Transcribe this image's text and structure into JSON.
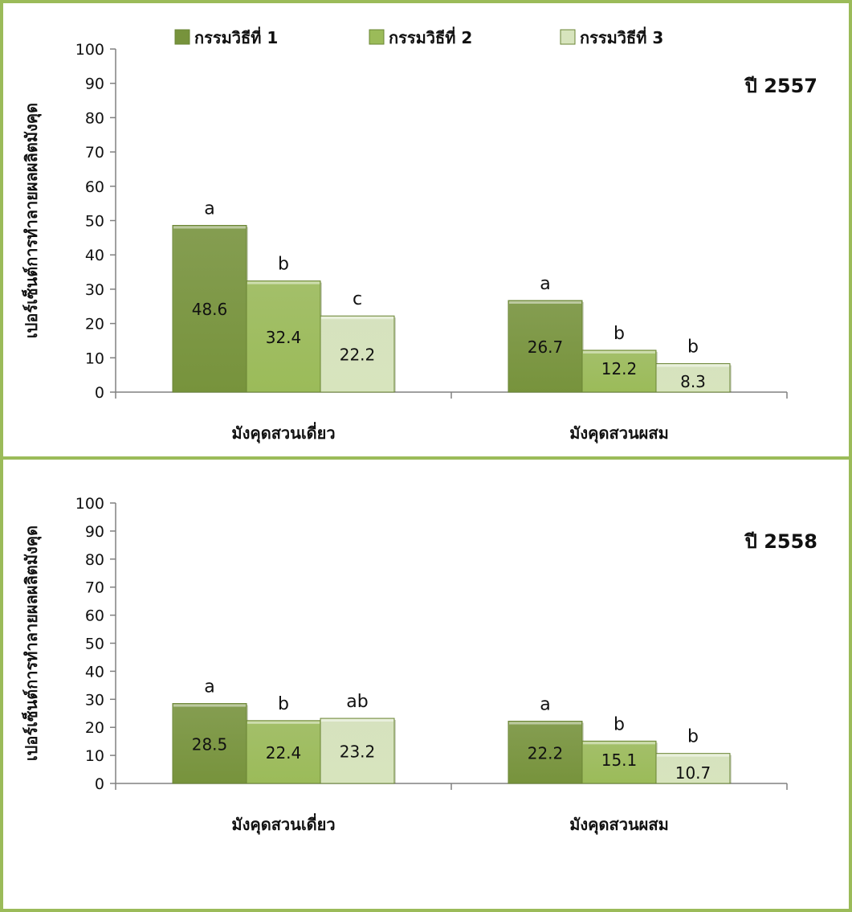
{
  "colors": {
    "series1": "#77933c",
    "series2": "#9bbb59",
    "series3": "#d7e4bd",
    "border": "#9bbb59",
    "axis": "#808080"
  },
  "legend": [
    "กรรมวิธีที่ 1",
    "กรรมวิธีที่ 2",
    "กรรมวิธีที่ 3"
  ],
  "chart_data": [
    {
      "type": "bar",
      "title": "ปี 2557",
      "ylabel": "เปอร์เซ็นต์การทำลายผลผลิตมังคุด",
      "xlabel": "",
      "ylim": [
        0,
        100
      ],
      "yticks": [
        0,
        10,
        20,
        30,
        40,
        50,
        60,
        70,
        80,
        90,
        100
      ],
      "categories": [
        "มังคุดสวนเดี่ยว",
        "มังคุดสวนผสม"
      ],
      "legend_position": "top",
      "series": [
        {
          "name": "กรรมวิธีที่ 1",
          "values": [
            48.6,
            26.7
          ],
          "labels": [
            "a",
            "a"
          ]
        },
        {
          "name": "กรรมวิธีที่ 2",
          "values": [
            32.4,
            12.2
          ],
          "labels": [
            "b",
            "b"
          ]
        },
        {
          "name": "กรรมวิธีที่ 3",
          "values": [
            22.2,
            8.3
          ],
          "labels": [
            "c",
            "b"
          ]
        }
      ]
    },
    {
      "type": "bar",
      "title": "ปี 2558",
      "ylabel": "เปอร์เซ็นต์การทำลายผลผลิตมังคุด",
      "xlabel": "",
      "ylim": [
        0,
        100
      ],
      "yticks": [
        0,
        10,
        20,
        30,
        40,
        50,
        60,
        70,
        80,
        90,
        100
      ],
      "categories": [
        "มังคุดสวนเดี่ยว",
        "มังคุดสวนผสม"
      ],
      "series": [
        {
          "name": "กรรมวิธีที่ 1",
          "values": [
            28.5,
            22.2
          ],
          "labels": [
            "a",
            "a"
          ]
        },
        {
          "name": "กรรมวิธีที่ 2",
          "values": [
            22.4,
            15.1
          ],
          "labels": [
            "b",
            "b"
          ]
        },
        {
          "name": "กรรมวิธีที่ 3",
          "values": [
            23.2,
            10.7
          ],
          "labels": [
            "ab",
            "b"
          ]
        }
      ]
    }
  ]
}
